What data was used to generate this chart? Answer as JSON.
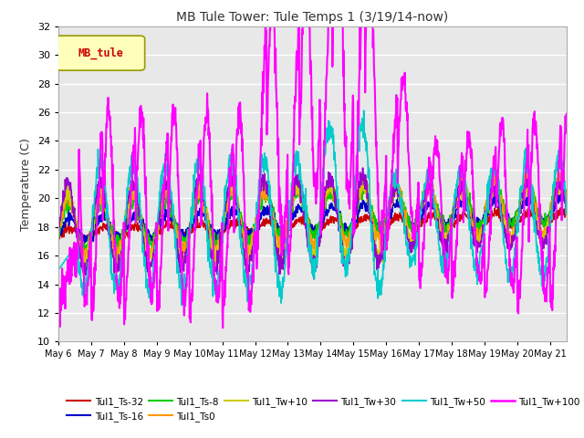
{
  "title": "MB Tule Tower: Tule Temps 1 (3/19/14-now)",
  "ylabel": "Temperature (C)",
  "ylim": [
    10,
    32
  ],
  "yticks": [
    10,
    12,
    14,
    16,
    18,
    20,
    22,
    24,
    26,
    28,
    30,
    32
  ],
  "x_tick_labels": [
    "May 6",
    "May 7",
    "May 8",
    "May 9",
    "May 10",
    "May 11",
    "May 12",
    "May 13",
    "May 14",
    "May 15",
    "May 16",
    "May 17",
    "May 18",
    "May 19",
    "May 20",
    "May 21"
  ],
  "legend_label": "MB_tule",
  "legend_color": "#cc0000",
  "bg_color": "#ffffff",
  "plot_bg": "#e8e8e8",
  "grid_color": "#ffffff",
  "series_colors": [
    "#cc0000",
    "#0000cc",
    "#00cc00",
    "#ff9900",
    "#cccc00",
    "#9900cc",
    "#00cccc",
    "#ff00ff"
  ],
  "series_names": [
    "Tul1_Ts-32",
    "Tul1_Ts-16",
    "Tul1_Ts-8",
    "Tul1_Ts0",
    "Tul1_Tw+10",
    "Tul1_Tw+30",
    "Tul1_Tw+50",
    "Tul1_Tw+100"
  ]
}
